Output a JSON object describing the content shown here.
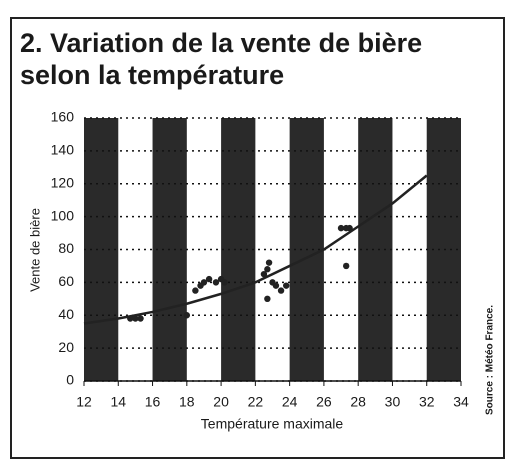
{
  "chart_data": {
    "type": "scatter",
    "title": [
      "2. Variation de la vente de bière",
      "selon la température"
    ],
    "x_label": "Température maximale",
    "y_label": "Vente de bière",
    "source": "Source : Météo France.",
    "x": [
      14.7,
      15,
      15.3,
      18,
      18.5,
      18.8,
      19,
      19.3,
      19.7,
      20,
      20.2,
      22.5,
      22.7,
      22.8,
      23,
      22.7,
      23.2,
      23.5,
      23.8,
      27,
      27.3,
      27.5,
      27.3
    ],
    "values": [
      38,
      38,
      38,
      40,
      55,
      58,
      60,
      62,
      60,
      62,
      60,
      65,
      68,
      72,
      60,
      50,
      58,
      55,
      58,
      93,
      93,
      93,
      70
    ],
    "trend_x": [
      12,
      14,
      16,
      18,
      20,
      22,
      24,
      26,
      28,
      30,
      32
    ],
    "trend_values": [
      35,
      38,
      42,
      47,
      53,
      60,
      70,
      80,
      94,
      108,
      125
    ],
    "color": "#222",
    "band_color": "#2a2a2a",
    "xlim": [
      12,
      34
    ],
    "ylim": [
      0,
      160
    ],
    "xticks": [
      12,
      14,
      16,
      18,
      20,
      22,
      24,
      26,
      28,
      30,
      32,
      34
    ],
    "yticks": [
      0,
      20,
      40,
      60,
      80,
      100,
      120,
      140,
      160
    ],
    "grid": true
  }
}
